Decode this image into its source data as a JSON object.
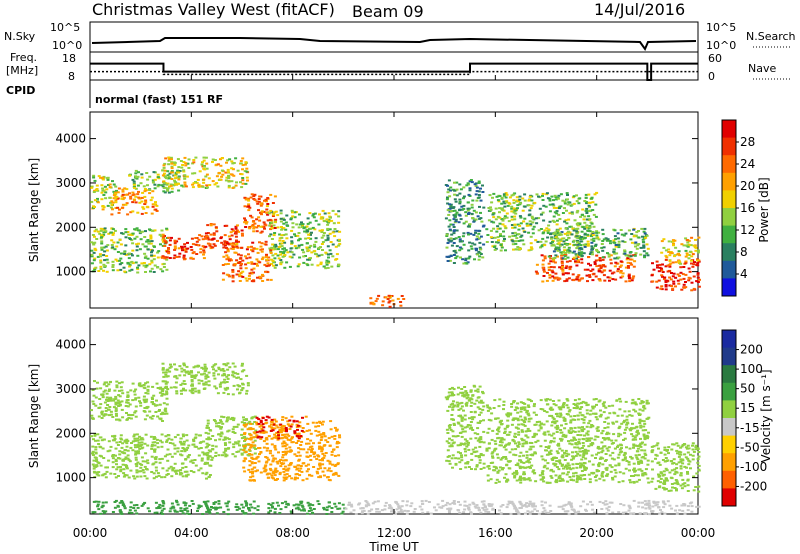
{
  "header": {
    "station": "Christmas Valley West (fitACF)",
    "beam": "Beam 09",
    "date": "14/Jul/2016"
  },
  "top_panels": {
    "nsky_label": "N.Sky",
    "nsearch_label": "N.Search",
    "noise_ticks": [
      "10^5",
      "10^0"
    ],
    "freq_label_1": "Freq.",
    "freq_label_2": "[MHz]",
    "freq_ticks": [
      "18",
      "8"
    ],
    "nave_label": "Nave",
    "nave_ticks": [
      "60",
      "0"
    ],
    "cpid_label": "CPID",
    "cpid_value": "normal (fast) 151 RF"
  },
  "power_panel": {
    "ylabel": "Slant Range [km]",
    "yticks": [
      "4000",
      "3000",
      "2000",
      "1000"
    ],
    "colorbar_label": "Power [dB]",
    "colorbar_ticks": [
      "28",
      "24",
      "20",
      "16",
      "12",
      "8",
      "4"
    ],
    "colors": [
      "#e00000",
      "#f03000",
      "#ff6a00",
      "#ffa000",
      "#f0d000",
      "#90d040",
      "#40b040",
      "#2a8060",
      "#205a9a",
      "#1010e0"
    ]
  },
  "velocity_panel": {
    "ylabel": "Slant Range [km]",
    "yticks": [
      "4000",
      "3000",
      "2000",
      "1000"
    ],
    "colorbar_label": "Velocity [m s⁻¹]",
    "colorbar_ticks": [
      "200",
      "100",
      "50",
      "15",
      "-15",
      "-50",
      "-100",
      "-200"
    ],
    "colors": [
      "#1a2aa0",
      "#203a8a",
      "#2a7a40",
      "#3aa040",
      "#90d040",
      "#c8c8c8",
      "#ffd000",
      "#ffa000",
      "#ff6000",
      "#e00000"
    ]
  },
  "xaxis": {
    "label": "Time UT",
    "ticks": [
      "00:00",
      "04:00",
      "08:00",
      "12:00",
      "16:00",
      "20:00",
      "00:00"
    ]
  },
  "chart_data": {
    "type": "heatmap",
    "title": "Christmas Valley West (fitACF) Beam 09 14/Jul/2016",
    "xlabel": "Time UT",
    "ylabel": "Slant Range [km]",
    "xlim": [
      0,
      24
    ],
    "ylim": [
      180,
      4600
    ],
    "nave_profile": {
      "x": [
        0,
        2.9,
        2.9,
        15,
        15,
        22,
        22,
        22.15,
        22.15,
        24
      ],
      "y": [
        35,
        35,
        18,
        18,
        35,
        35,
        0,
        0,
        35,
        35
      ]
    },
    "freq_profile": {
      "x": [
        0,
        2.9,
        2.9,
        15,
        15,
        24
      ],
      "y": [
        11,
        11,
        10,
        10,
        11,
        11
      ]
    },
    "power_regions": [
      {
        "t": [
          0,
          1
        ],
        "r": [
          2400,
          3200
        ],
        "level": 16
      },
      {
        "t": [
          0.8,
          2.6
        ],
        "r": [
          2300,
          2900
        ],
        "level": 22
      },
      {
        "t": [
          1.5,
          3.5
        ],
        "r": [
          2800,
          3300
        ],
        "level": 14
      },
      {
        "t": [
          2.8,
          6.2
        ],
        "r": [
          2900,
          3600
        ],
        "level": 18
      },
      {
        "t": [
          0,
          3
        ],
        "r": [
          1000,
          2000
        ],
        "level": 14
      },
      {
        "t": [
          2.8,
          4.5
        ],
        "r": [
          1300,
          1900
        ],
        "level": 26
      },
      {
        "t": [
          4.5,
          6
        ],
        "r": [
          1500,
          2100
        ],
        "level": 26
      },
      {
        "t": [
          6,
          7.3
        ],
        "r": [
          1900,
          2800
        ],
        "level": 24
      },
      {
        "t": [
          7,
          9.8
        ],
        "r": [
          1100,
          2400
        ],
        "level": 14
      },
      {
        "t": [
          5.2,
          7.2
        ],
        "r": [
          800,
          1700
        ],
        "level": 24
      },
      {
        "t": [
          11,
          12.4
        ],
        "r": [
          230,
          480
        ],
        "level": 24
      },
      {
        "t": [
          14,
          15.5
        ],
        "r": [
          1200,
          3100
        ],
        "level": 10
      },
      {
        "t": [
          15.6,
          20
        ],
        "r": [
          1500,
          2800
        ],
        "level": 14
      },
      {
        "t": [
          17.5,
          21.5
        ],
        "r": [
          800,
          1400
        ],
        "level": 26
      },
      {
        "t": [
          18,
          22
        ],
        "r": [
          1300,
          2000
        ],
        "level": 12
      },
      {
        "t": [
          22.1,
          24
        ],
        "r": [
          600,
          1300
        ],
        "level": 28
      },
      {
        "t": [
          22.5,
          24
        ],
        "r": [
          1200,
          1800
        ],
        "level": 18
      }
    ],
    "velocity_regions": [
      {
        "t": [
          0,
          3
        ],
        "r": [
          2300,
          3200
        ],
        "level": 0
      },
      {
        "t": [
          2.8,
          6.2
        ],
        "r": [
          2900,
          3600
        ],
        "level": 0
      },
      {
        "t": [
          0,
          4.8
        ],
        "r": [
          1000,
          2000
        ],
        "level": 0
      },
      {
        "t": [
          4.5,
          6.5
        ],
        "r": [
          1500,
          2400
        ],
        "level": 0
      },
      {
        "t": [
          6,
          9.8
        ],
        "r": [
          950,
          2300
        ],
        "level": -180
      },
      {
        "t": [
          6.5,
          8.5
        ],
        "r": [
          1900,
          2400
        ],
        "level": -200
      },
      {
        "t": [
          0,
          10
        ],
        "r": [
          200,
          500
        ],
        "level": 30
      },
      {
        "t": [
          10,
          24
        ],
        "r": [
          200,
          500
        ],
        "level": -40
      },
      {
        "t": [
          14,
          15.5
        ],
        "r": [
          1200,
          3100
        ],
        "level": 0
      },
      {
        "t": [
          15.6,
          22
        ],
        "r": [
          900,
          2800
        ],
        "level": 0
      },
      {
        "t": [
          22.1,
          24
        ],
        "r": [
          700,
          1800
        ],
        "level": 0
      }
    ]
  }
}
